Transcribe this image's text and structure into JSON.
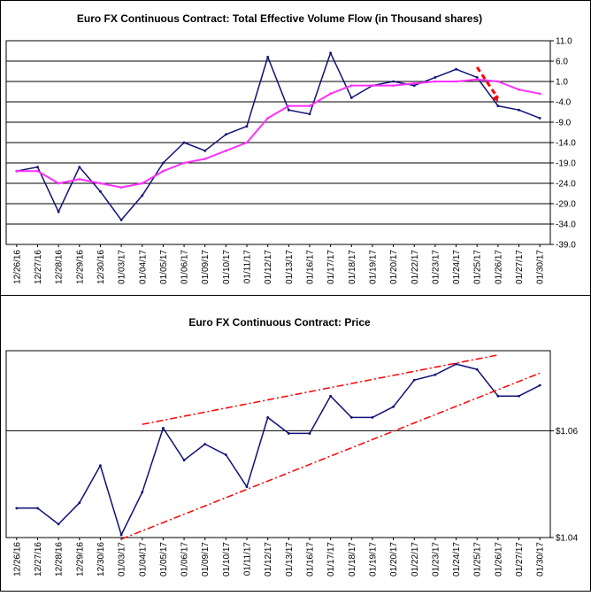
{
  "colors": {
    "volume_line": "#101078",
    "moving_average": "#ff30ff",
    "price_line": "#101078",
    "trend_arrow": "#ff0000",
    "channel_lines": "#ff0000",
    "frame": "#000000",
    "background": "#ffffff"
  },
  "chart_data": [
    {
      "type": "line",
      "title": "Euro FX Continuous Contract: Total Effective Volume Flow (in Thousand shares)",
      "xlabel": "",
      "ylabel": "",
      "ylim": [
        -39,
        11
      ],
      "y_ticks": [
        "11.0",
        "6.0",
        "1.0",
        "-4.0",
        "-9.0",
        "-14.0",
        "-19.0",
        "-24.0",
        "-29.0",
        "-34.0",
        "-39.0"
      ],
      "y_tick_values": [
        11,
        6,
        1,
        -4,
        -9,
        -14,
        -19,
        -24,
        -29,
        -34,
        -39
      ],
      "grid": "horizontal",
      "categories": [
        "12/26/16",
        "12/27/16",
        "12/28/16",
        "12/29/16",
        "12/30/16",
        "01/03/17",
        "01/04/17",
        "01/05/17",
        "01/06/17",
        "01/09/17",
        "01/10/17",
        "01/11/17",
        "01/12/17",
        "01/13/17",
        "01/16/17",
        "01/17/17",
        "01/18/17",
        "01/19/17",
        "01/20/17",
        "01/22/17",
        "01/23/17",
        "01/24/17",
        "01/25/17",
        "01/26/17",
        "01/27/17",
        "01/30/17"
      ],
      "series": [
        {
          "values": [
            -21,
            -20,
            -31,
            -20,
            -26,
            -33,
            -27,
            -19,
            -14,
            -16,
            -12,
            -10,
            7,
            -6,
            -7,
            8,
            -3,
            0,
            1,
            0,
            2,
            4,
            2,
            -5,
            -6,
            -8
          ]
        },
        {
          "values": [
            -21,
            -21,
            -24,
            -23,
            -24,
            -25,
            -24,
            -21,
            -19,
            -18,
            -16,
            -14,
            -8,
            -5,
            -5,
            -2,
            0,
            0,
            0,
            0.5,
            1,
            1,
            1.5,
            1,
            -1,
            -2
          ]
        }
      ],
      "annotations": [
        {
          "kind": "arrow",
          "style": "dashed",
          "from": [
            "01/25/17",
            4.5
          ],
          "to": [
            "01/26/17",
            -4
          ]
        }
      ]
    },
    {
      "type": "line",
      "title": "Euro FX Continuous Contract: Price",
      "xlabel": "",
      "ylabel": "",
      "ylim": [
        1.04,
        1.075
      ],
      "y_ticks": [
        "$1.06",
        "$1.04"
      ],
      "y_tick_values": [
        1.06,
        1.04
      ],
      "grid": "horizontal",
      "categories": [
        "12/26/16",
        "12/27/16",
        "12/28/16",
        "12/29/16",
        "12/30/16",
        "01/03/17",
        "01/04/17",
        "01/05/17",
        "01/06/17",
        "01/09/17",
        "01/10/17",
        "01/11/17",
        "01/12/17",
        "01/13/17",
        "01/16/17",
        "01/17/17",
        "01/18/17",
        "01/19/17",
        "01/20/17",
        "01/22/17",
        "01/23/17",
        "01/24/17",
        "01/25/17",
        "01/26/17",
        "01/27/17",
        "01/30/17"
      ],
      "series": [
        {
          "values": [
            1.0455,
            1.0455,
            1.0425,
            1.0465,
            1.0535,
            1.0405,
            1.0485,
            1.0605,
            1.0545,
            1.0575,
            1.0555,
            1.0495,
            1.0625,
            1.0595,
            1.0595,
            1.0665,
            1.0625,
            1.0625,
            1.0645,
            1.0695,
            1.0705,
            1.0725,
            1.0715,
            1.0665,
            1.0665,
            1.0685
          ]
        }
      ],
      "annotations": [
        {
          "kind": "trend-line",
          "style": "dash-dot",
          "from": [
            "01/03/17",
            1.0397
          ],
          "to": [
            "01/30/17",
            1.0708
          ]
        },
        {
          "kind": "trend-line",
          "style": "dash-dot",
          "from": [
            "01/04/17",
            1.0612
          ],
          "to": [
            "01/26/17",
            1.0742
          ]
        }
      ]
    }
  ]
}
